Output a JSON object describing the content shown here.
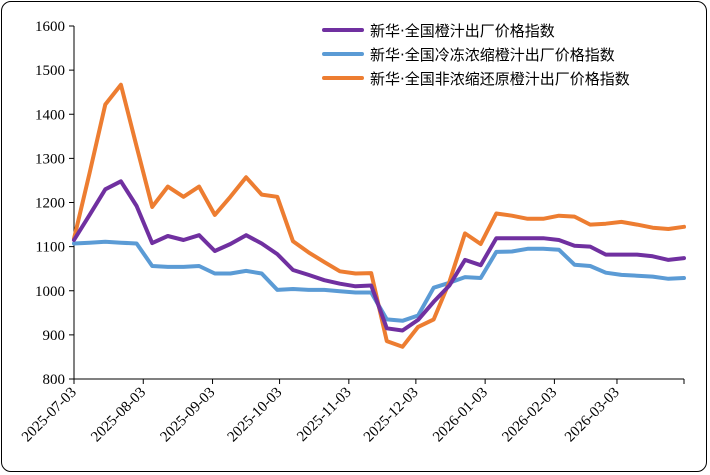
{
  "chart_data": {
    "type": "line",
    "title": "",
    "xlabel": "",
    "ylabel": "",
    "ylim": [
      800,
      1600
    ],
    "yticks": [
      "800",
      "900",
      "1000",
      "1100",
      "1200",
      "1300",
      "1400",
      "1500",
      "1600"
    ],
    "xtick_labels": [
      "2025-07-03",
      "2025-08-03",
      "2025-09-03",
      "2025-10-03",
      "2025-11-03",
      "2025-12-03",
      "2026-01-03",
      "2026-02-03",
      "2026-03-03"
    ],
    "legend_position": "top-right",
    "grid": false,
    "x": [
      "2025-07-03",
      "2025-07-10",
      "2025-07-17",
      "2025-07-24",
      "2025-07-31",
      "2025-08-07",
      "2025-08-14",
      "2025-08-21",
      "2025-08-28",
      "2025-09-04",
      "2025-09-11",
      "2025-09-18",
      "2025-09-25",
      "2025-10-02",
      "2025-10-09",
      "2025-10-16",
      "2025-10-23",
      "2025-10-30",
      "2025-11-06",
      "2025-11-13",
      "2025-11-20",
      "2025-11-27",
      "2025-12-04",
      "2025-12-11",
      "2025-12-18",
      "2025-12-25",
      "2026-01-01",
      "2026-01-08",
      "2026-01-15",
      "2026-01-22",
      "2026-01-29",
      "2026-02-05",
      "2026-02-12",
      "2026-02-19",
      "2026-02-26",
      "2026-03-05",
      "2026-03-12",
      "2026-03-19",
      "2026-03-26",
      "2026-04-02"
    ],
    "series": [
      {
        "name": "新华·全国橙汁出厂价格指数",
        "color": "#7030A0",
        "values": [
          1115,
          1172,
          1230,
          1248,
          1192,
          1108,
          1124,
          1115,
          1126,
          1090,
          1106,
          1126,
          1107,
          1083,
          1047,
          1036,
          1024,
          1016,
          1010,
          1012,
          915,
          910,
          934,
          975,
          1012,
          1070,
          1058,
          1119,
          1119,
          1119,
          1119,
          1115,
          1102,
          1100,
          1082,
          1082,
          1082,
          1078,
          1070,
          1074
        ]
      },
      {
        "name": "新华·全国冷冻浓缩橙汁出厂价格指数",
        "color": "#5B9BD5",
        "values": [
          1107,
          1109,
          1111,
          1109,
          1107,
          1056,
          1054,
          1054,
          1056,
          1039,
          1039,
          1045,
          1039,
          1002,
          1004,
          1002,
          1002,
          999,
          996,
          996,
          935,
          932,
          944,
          1007,
          1018,
          1031,
          1029,
          1088,
          1089,
          1095,
          1095,
          1093,
          1059,
          1056,
          1041,
          1036,
          1034,
          1032,
          1027,
          1029
        ]
      },
      {
        "name": "新华·全国非浓缩还原橙汁出厂价格指数",
        "color": "#ED7D31",
        "values": [
          1118,
          1267,
          1422,
          1467,
          1327,
          1190,
          1236,
          1213,
          1236,
          1172,
          1213,
          1257,
          1218,
          1213,
          1112,
          1087,
          1065,
          1044,
          1039,
          1040,
          886,
          873,
          918,
          935,
          1020,
          1130,
          1106,
          1175,
          1170,
          1163,
          1163,
          1170,
          1168,
          1150,
          1152,
          1156,
          1150,
          1143,
          1140,
          1145
        ]
      }
    ]
  }
}
